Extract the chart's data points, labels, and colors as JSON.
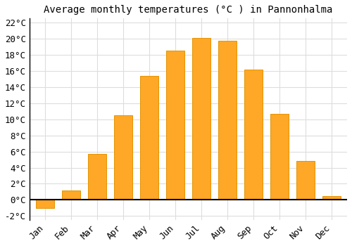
{
  "title": "Average monthly temperatures (°C ) in Pannonhalma",
  "months": [
    "Jan",
    "Feb",
    "Mar",
    "Apr",
    "May",
    "Jun",
    "Jul",
    "Aug",
    "Sep",
    "Oct",
    "Nov",
    "Dec"
  ],
  "values": [
    -1.0,
    1.2,
    5.7,
    10.5,
    15.4,
    18.5,
    20.1,
    19.7,
    16.2,
    10.7,
    4.8,
    0.5
  ],
  "bar_color": "#FFA726",
  "bar_edge_color": "#E59400",
  "background_color": "#ffffff",
  "grid_color": "#dddddd",
  "ylim": [
    -2.5,
    22.5
  ],
  "yticks": [
    -2,
    0,
    2,
    4,
    6,
    8,
    10,
    12,
    14,
    16,
    18,
    20,
    22
  ],
  "title_fontsize": 10,
  "tick_fontsize": 9,
  "bar_width": 0.7
}
